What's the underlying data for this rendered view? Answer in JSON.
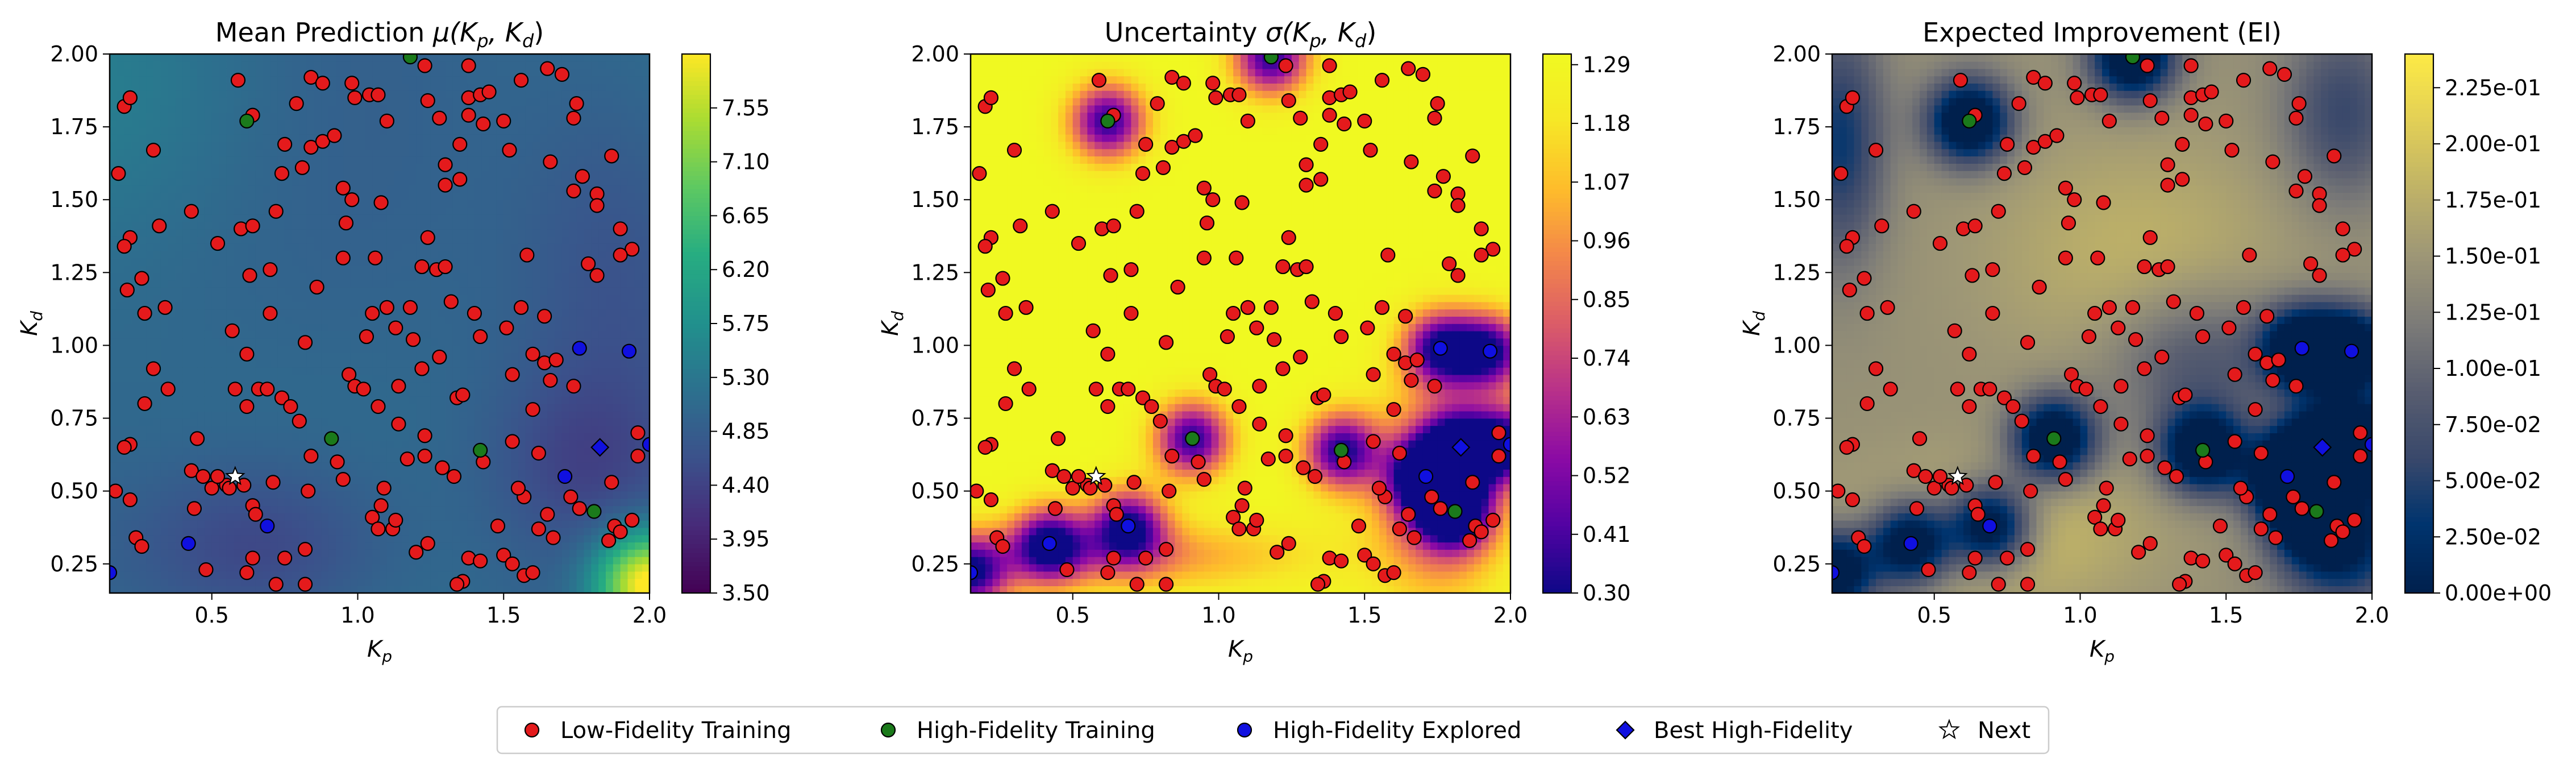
{
  "chart_data": [
    {
      "type": "heatmap",
      "title_text": "Mean Prediction ",
      "title_math": "μ(K",
      "title_sub1": "p",
      "title_mid": ", K",
      "title_sub2": "d",
      "title_end": ")",
      "xlabel": "K",
      "xlabel_sub": "p",
      "ylabel": "K",
      "ylabel_sub": "d",
      "xlim": [
        0.15,
        2.0
      ],
      "ylim": [
        0.15,
        2.0
      ],
      "xticks": [
        "0.5",
        "1.0",
        "1.5",
        "2.0"
      ],
      "yticks": [
        "0.25",
        "0.50",
        "0.75",
        "1.00",
        "1.25",
        "1.50",
        "1.75",
        "2.00"
      ],
      "colormap": "viridis",
      "colorbar_range": [
        3.5,
        8.0
      ],
      "colorbar_ticks": [
        "3.50",
        "3.95",
        "4.40",
        "4.85",
        "5.30",
        "5.75",
        "6.20",
        "6.65",
        "7.10",
        "7.55"
      ]
    },
    {
      "type": "heatmap",
      "title_text": "Uncertainty ",
      "title_math": "σ(K",
      "title_sub1": "p",
      "title_mid": ", K",
      "title_sub2": "d",
      "title_end": ")",
      "xlabel": "K",
      "xlabel_sub": "p",
      "ylabel": "K",
      "ylabel_sub": "d",
      "xlim": [
        0.15,
        2.0
      ],
      "ylim": [
        0.15,
        2.0
      ],
      "xticks": [
        "0.5",
        "1.0",
        "1.5",
        "2.0"
      ],
      "yticks": [
        "0.25",
        "0.50",
        "0.75",
        "1.00",
        "1.25",
        "1.50",
        "1.75",
        "2.00"
      ],
      "colormap": "plasma",
      "colorbar_range": [
        0.3,
        1.31
      ],
      "colorbar_ticks": [
        "0.30",
        "0.41",
        "0.52",
        "0.63",
        "0.74",
        "0.85",
        "0.96",
        "1.07",
        "1.18",
        "1.29"
      ]
    },
    {
      "type": "heatmap",
      "title_text": "Expected Improvement (EI)",
      "title_math": "",
      "title_sub1": "",
      "title_mid": "",
      "title_sub2": "",
      "title_end": "",
      "xlabel": "K",
      "xlabel_sub": "p",
      "ylabel": "K",
      "ylabel_sub": "d",
      "xlim": [
        0.15,
        2.0
      ],
      "ylim": [
        0.15,
        2.0
      ],
      "xticks": [
        "0.5",
        "1.0",
        "1.5",
        "2.0"
      ],
      "yticks": [
        "0.25",
        "0.50",
        "0.75",
        "1.00",
        "1.25",
        "1.50",
        "1.75",
        "2.00"
      ],
      "colormap": "cividis",
      "colorbar_range": [
        0.0,
        0.24
      ],
      "colorbar_ticks": [
        "0.00e+00",
        "2.50e-02",
        "5.00e-02",
        "7.50e-02",
        "1.00e-01",
        "1.25e-01",
        "1.50e-01",
        "1.75e-01",
        "2.00e-01",
        "2.25e-01"
      ]
    }
  ],
  "points": {
    "low_fidelity": [
      [
        0.18,
        1.59
      ],
      [
        0.2,
        1.82
      ],
      [
        0.22,
        1.85
      ],
      [
        0.3,
        1.67
      ],
      [
        0.22,
        1.37
      ],
      [
        0.2,
        1.34
      ],
      [
        0.32,
        1.41
      ],
      [
        0.26,
        1.23
      ],
      [
        0.21,
        1.19
      ],
      [
        0.27,
        1.11
      ],
      [
        0.34,
        1.13
      ],
      [
        0.3,
        0.92
      ],
      [
        0.27,
        0.8
      ],
      [
        0.35,
        0.85
      ],
      [
        0.22,
        0.66
      ],
      [
        0.2,
        0.65
      ],
      [
        0.17,
        0.5
      ],
      [
        0.22,
        0.47
      ],
      [
        0.24,
        0.34
      ],
      [
        0.26,
        0.31
      ],
      [
        0.43,
        0.57
      ],
      [
        0.44,
        0.44
      ],
      [
        0.45,
        0.68
      ],
      [
        0.47,
        0.55
      ],
      [
        0.5,
        0.51
      ],
      [
        0.55,
        0.52
      ],
      [
        0.56,
        0.51
      ],
      [
        0.52,
        0.55
      ],
      [
        0.61,
        0.52
      ],
      [
        0.64,
        0.45
      ],
      [
        0.65,
        0.42
      ],
      [
        0.71,
        0.53
      ],
      [
        0.64,
        0.27
      ],
      [
        0.75,
        0.27
      ],
      [
        0.62,
        0.22
      ],
      [
        0.72,
        0.18
      ],
      [
        0.48,
        0.23
      ],
      [
        0.82,
        0.3
      ],
      [
        0.82,
        0.18
      ],
      [
        0.58,
        0.85
      ],
      [
        0.62,
        0.79
      ],
      [
        0.66,
        0.85
      ],
      [
        0.69,
        0.85
      ],
      [
        0.74,
        0.82
      ],
      [
        0.77,
        0.79
      ],
      [
        0.8,
        0.74
      ],
      [
        0.62,
        0.97
      ],
      [
        0.57,
        1.05
      ],
      [
        0.7,
        1.11
      ],
      [
        0.82,
        1.01
      ],
      [
        0.43,
        1.46
      ],
      [
        0.52,
        1.35
      ],
      [
        0.6,
        1.4
      ],
      [
        0.64,
        1.41
      ],
      [
        0.72,
        1.46
      ],
      [
        0.63,
        1.24
      ],
      [
        0.7,
        1.26
      ],
      [
        0.86,
        1.2
      ],
      [
        0.74,
        1.59
      ],
      [
        0.81,
        1.61
      ],
      [
        0.84,
        1.68
      ],
      [
        0.88,
        1.7
      ],
      [
        0.92,
        1.72
      ],
      [
        0.75,
        1.69
      ],
      [
        0.64,
        1.79
      ],
      [
        0.59,
        1.91
      ],
      [
        0.79,
        1.83
      ],
      [
        0.84,
        1.92
      ],
      [
        0.88,
        1.9
      ],
      [
        0.98,
        1.9
      ],
      [
        1.04,
        1.86
      ],
      [
        1.07,
        1.86
      ],
      [
        0.99,
        1.85
      ],
      [
        1.1,
        1.77
      ],
      [
        0.95,
        1.54
      ],
      [
        0.98,
        1.5
      ],
      [
        1.08,
        1.49
      ],
      [
        0.96,
        1.42
      ],
      [
        0.95,
        1.3
      ],
      [
        1.06,
        1.3
      ],
      [
        1.1,
        1.13
      ],
      [
        1.05,
        1.11
      ],
      [
        1.13,
        1.06
      ],
      [
        1.18,
        1.13
      ],
      [
        1.22,
        1.27
      ],
      [
        1.27,
        1.26
      ],
      [
        1.3,
        1.27
      ],
      [
        1.24,
        1.37
      ],
      [
        1.3,
        1.55
      ],
      [
        1.35,
        1.57
      ],
      [
        1.3,
        1.62
      ],
      [
        1.35,
        1.69
      ],
      [
        1.38,
        1.85
      ],
      [
        1.42,
        1.86
      ],
      [
        1.45,
        1.87
      ],
      [
        1.38,
        1.79
      ],
      [
        1.28,
        1.78
      ],
      [
        1.24,
        1.84
      ],
      [
        1.23,
        1.96
      ],
      [
        1.38,
        1.96
      ],
      [
        1.43,
        1.76
      ],
      [
        1.5,
        1.77
      ],
      [
        1.52,
        1.67
      ],
      [
        1.56,
        1.91
      ],
      [
        1.65,
        1.95
      ],
      [
        1.7,
        1.93
      ],
      [
        1.75,
        1.83
      ],
      [
        1.74,
        1.78
      ],
      [
        1.66,
        1.63
      ],
      [
        1.74,
        1.53
      ],
      [
        1.77,
        1.58
      ],
      [
        1.87,
        1.65
      ],
      [
        1.82,
        1.52
      ],
      [
        1.82,
        1.48
      ],
      [
        1.9,
        1.4
      ],
      [
        1.94,
        1.33
      ],
      [
        1.9,
        1.31
      ],
      [
        1.79,
        1.28
      ],
      [
        1.82,
        1.24
      ],
      [
        1.64,
        1.1
      ],
      [
        1.56,
        1.13
      ],
      [
        1.51,
        1.06
      ],
      [
        1.42,
        1.03
      ],
      [
        1.4,
        1.11
      ],
      [
        1.58,
        1.31
      ],
      [
        1.32,
        1.15
      ],
      [
        1.03,
        1.03
      ],
      [
        0.97,
        0.9
      ],
      [
        0.99,
        0.86
      ],
      [
        1.02,
        0.85
      ],
      [
        1.07,
        0.79
      ],
      [
        1.14,
        0.73
      ],
      [
        1.14,
        0.86
      ],
      [
        1.22,
        0.92
      ],
      [
        1.28,
        0.96
      ],
      [
        1.19,
        1.02
      ],
      [
        1.34,
        0.82
      ],
      [
        1.36,
        0.83
      ],
      [
        1.23,
        0.69
      ],
      [
        1.17,
        0.61
      ],
      [
        1.23,
        0.62
      ],
      [
        1.29,
        0.58
      ],
      [
        1.33,
        0.55
      ],
      [
        1.09,
        0.51
      ],
      [
        1.08,
        0.45
      ],
      [
        1.05,
        0.41
      ],
      [
        1.07,
        0.37
      ],
      [
        1.12,
        0.37
      ],
      [
        1.13,
        0.4
      ],
      [
        0.84,
        0.62
      ],
      [
        0.83,
        0.5
      ],
      [
        0.93,
        0.6
      ],
      [
        0.95,
        0.54
      ],
      [
        1.24,
        0.32
      ],
      [
        1.2,
        0.29
      ],
      [
        1.38,
        0.27
      ],
      [
        1.36,
        0.19
      ],
      [
        1.34,
        0.18
      ],
      [
        1.42,
        0.26
      ],
      [
        1.48,
        0.38
      ],
      [
        1.5,
        0.28
      ],
      [
        1.53,
        0.25
      ],
      [
        1.57,
        0.21
      ],
      [
        1.6,
        0.22
      ],
      [
        1.57,
        0.48
      ],
      [
        1.65,
        0.42
      ],
      [
        1.67,
        0.34
      ],
      [
        1.62,
        0.37
      ],
      [
        1.76,
        0.44
      ],
      [
        1.73,
        0.48
      ],
      [
        1.86,
        0.33
      ],
      [
        1.88,
        0.38
      ],
      [
        1.9,
        0.36
      ],
      [
        1.94,
        0.4
      ],
      [
        1.87,
        0.53
      ],
      [
        1.62,
        0.63
      ],
      [
        1.53,
        0.67
      ],
      [
        1.6,
        0.78
      ],
      [
        1.66,
        0.88
      ],
      [
        1.64,
        0.94
      ],
      [
        1.53,
        0.9
      ],
      [
        1.6,
        0.97
      ],
      [
        1.68,
        0.95
      ],
      [
        1.74,
        0.86
      ],
      [
        1.96,
        0.62
      ],
      [
        1.96,
        0.7
      ],
      [
        1.55,
        0.51
      ],
      [
        1.43,
        0.6
      ]
    ],
    "high_fidelity": [
      [
        0.62,
        1.77
      ],
      [
        1.18,
        1.99
      ],
      [
        0.91,
        0.68
      ],
      [
        1.42,
        0.64
      ],
      [
        1.81,
        0.43
      ]
    ],
    "explored": [
      [
        0.42,
        0.32
      ],
      [
        0.69,
        0.38
      ],
      [
        0.15,
        0.22
      ],
      [
        1.71,
        0.55
      ],
      [
        1.76,
        0.99
      ],
      [
        2.0,
        0.66
      ],
      [
        1.93,
        0.98
      ]
    ],
    "best": [
      [
        1.83,
        0.65
      ]
    ],
    "next": [
      [
        0.58,
        0.55
      ]
    ]
  },
  "legend": {
    "items": [
      {
        "label": "Low-Fidelity Training",
        "marker": "circle",
        "color": "#e41a1c"
      },
      {
        "label": "High-Fidelity Training",
        "marker": "circle",
        "color": "#1b7a1b"
      },
      {
        "label": "High-Fidelity Explored",
        "marker": "circle",
        "color": "#1010e0"
      },
      {
        "label": "Best High-Fidelity",
        "marker": "diamond",
        "color": "#1010e0"
      },
      {
        "label": "Next",
        "marker": "star",
        "color": "#ffffff"
      }
    ]
  }
}
